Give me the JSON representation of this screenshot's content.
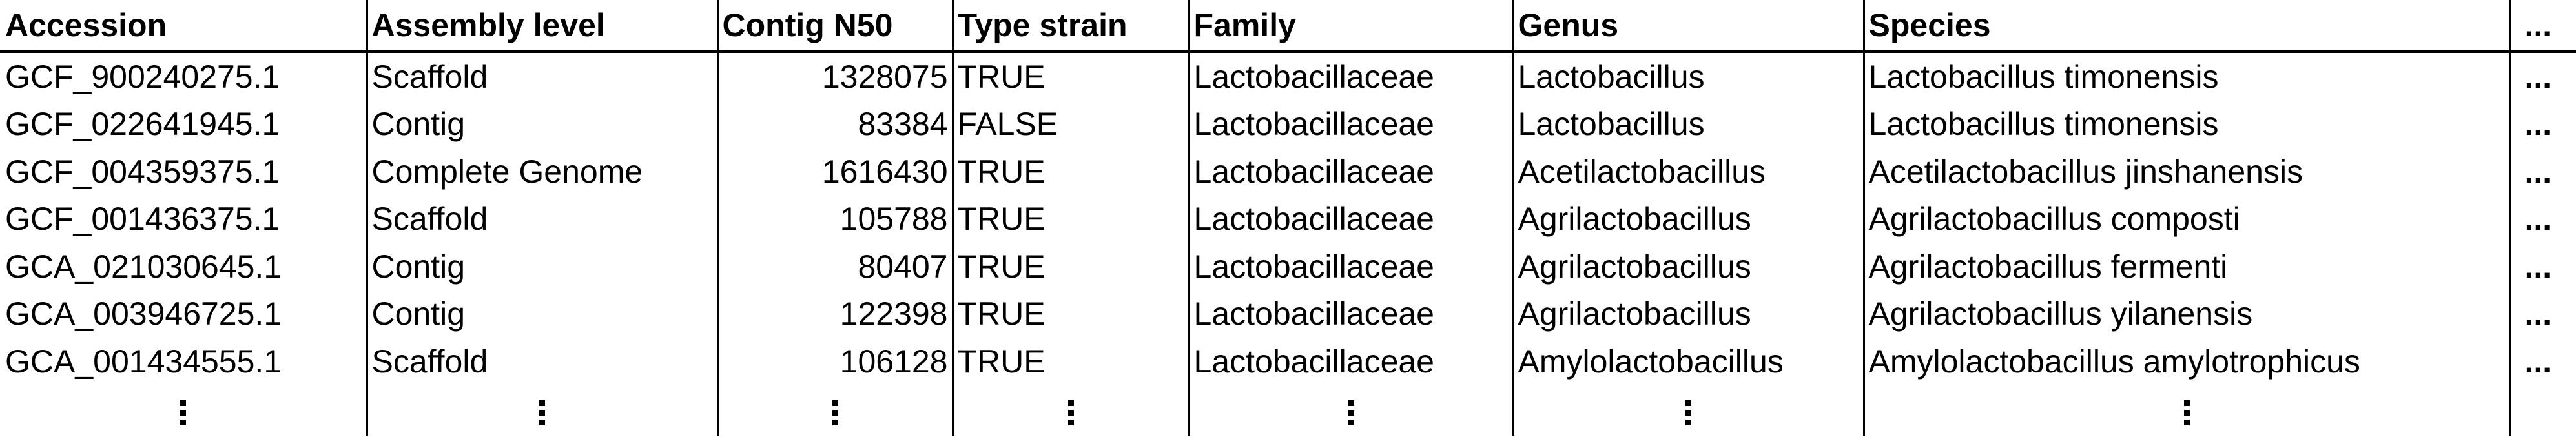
{
  "table": {
    "headers": [
      "Accession",
      "Assembly level",
      "Contig N50",
      "Type strain",
      "Family",
      "Genus",
      "Species",
      "..."
    ],
    "rows": [
      [
        "GCF_900240275.1",
        "Scaffold",
        "1328075",
        "TRUE",
        "Lactobacillaceae",
        "Lactobacillus",
        "Lactobacillus timonensis",
        "..."
      ],
      [
        "GCF_022641945.1",
        "Contig",
        "83384",
        "FALSE",
        "Lactobacillaceae",
        "Lactobacillus",
        "Lactobacillus timonensis",
        "..."
      ],
      [
        "GCF_004359375.1",
        "Complete Genome",
        "1616430",
        "TRUE",
        "Lactobacillaceae",
        "Acetilactobacillus",
        "Acetilactobacillus jinshanensis",
        "..."
      ],
      [
        "GCF_001436375.1",
        "Scaffold",
        "105788",
        "TRUE",
        "Lactobacillaceae",
        "Agrilactobacillus",
        "Agrilactobacillus composti",
        "..."
      ],
      [
        "GCA_021030645.1",
        "Contig",
        "80407",
        "TRUE",
        "Lactobacillaceae",
        "Agrilactobacillus",
        "Agrilactobacillus fermenti",
        "..."
      ],
      [
        "GCA_003946725.1",
        "Contig",
        "122398",
        "TRUE",
        "Lactobacillaceae",
        "Agrilactobacillus",
        "Agrilactobacillus yilanensis",
        "..."
      ],
      [
        "GCA_001434555.1",
        "Scaffold",
        "106128",
        "TRUE",
        "Lactobacillaceae",
        "Amylolactobacillus",
        "Amylolactobacillus amylotrophicus",
        "..."
      ]
    ],
    "continuation_marker": "⋮"
  }
}
